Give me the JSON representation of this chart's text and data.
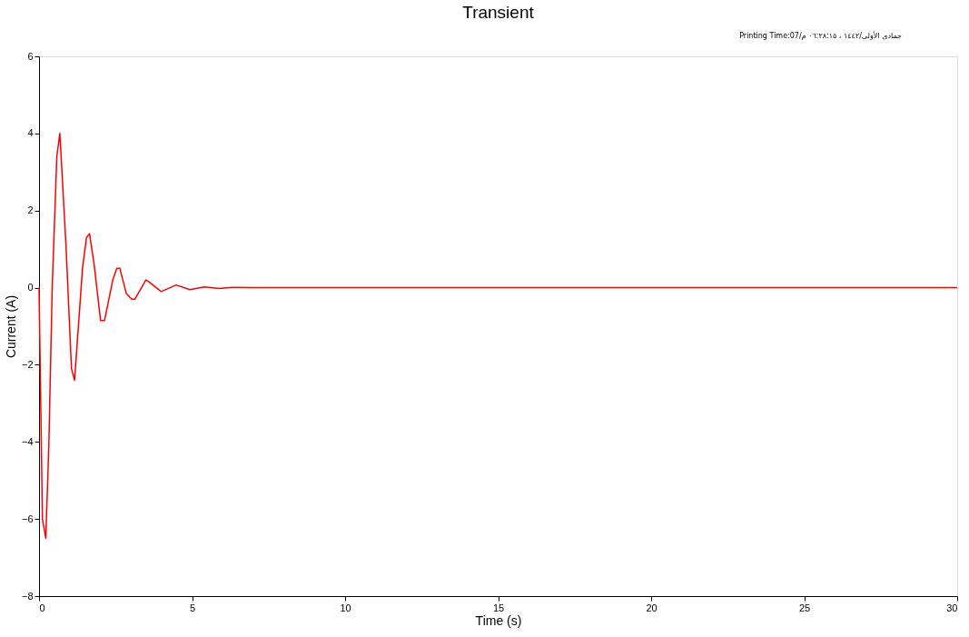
{
  "chart_data": {
    "type": "line",
    "title": "Transient",
    "xlabel": "Time (s)",
    "ylabel": "Current (A)",
    "annotations": [
      "Printing Time:07/جمادى الأولى/١٤٤٢ ، ٠٦:٢٨:١٥ م"
    ],
    "x": [
      0,
      0.11,
      0.22,
      0.32,
      0.43,
      0.58,
      0.68,
      0.88,
      1.06,
      1.16,
      1.42,
      1.55,
      1.65,
      1.8,
      2.01,
      2.14,
      2.41,
      2.54,
      2.64,
      2.85,
      3.03,
      3.13,
      3.49,
      3.59,
      3.99,
      4.48,
      4.93,
      5.4,
      5.89,
      6.3,
      7,
      8,
      10,
      15,
      20,
      25,
      30
    ],
    "series": [
      {
        "color": "#ff0000",
        "values": [
          0,
          -6.0,
          -6.5,
          -4.1,
          0,
          3.4,
          4.0,
          1.1,
          -2.1,
          -2.4,
          0.5,
          1.3,
          1.4,
          0.6,
          -0.85,
          -0.85,
          0.2,
          0.5,
          0.5,
          -0.15,
          -0.3,
          -0.3,
          0.2,
          0.15,
          -0.1,
          0.07,
          -0.05,
          0.02,
          -0.02,
          0.01,
          0,
          0,
          0,
          0,
          0,
          0,
          0
        ]
      }
    ],
    "xlim": [
      0,
      30
    ],
    "xticks": [
      0,
      5,
      10,
      15,
      20,
      25,
      30
    ],
    "ylim": [
      -8,
      6
    ],
    "yticks": [
      -8,
      -6,
      -4,
      -2,
      0,
      2,
      4,
      6
    ],
    "grid": false,
    "legend": false,
    "marker": "none",
    "line_style": "solid"
  }
}
